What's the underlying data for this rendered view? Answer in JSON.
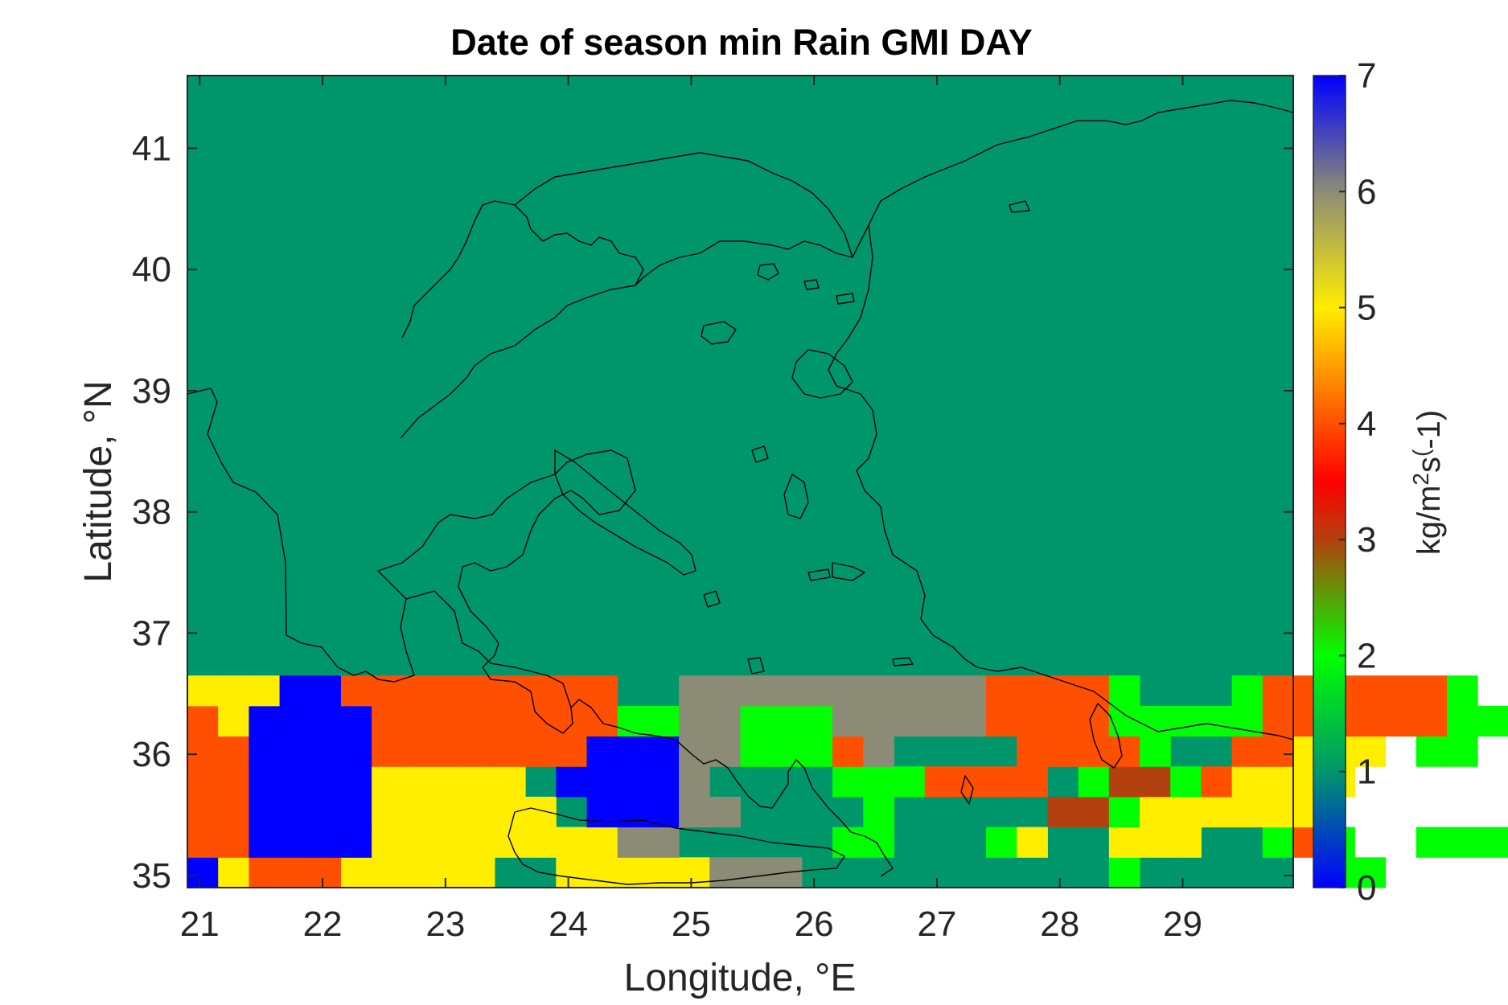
{
  "chart_data": {
    "type": "heatmap",
    "title": "Date of season min Rain GMI DAY",
    "xlabel": "Longitude, °E",
    "ylabel": "Latitude, °N",
    "xlim": [
      20.9,
      29.9
    ],
    "ylim": [
      34.9,
      41.6
    ],
    "xticks": [
      21,
      22,
      23,
      24,
      25,
      26,
      27,
      28,
      29
    ],
    "yticks": [
      35,
      36,
      37,
      38,
      39,
      40,
      41
    ],
    "grid": false,
    "colorbar": {
      "label": "kg/m2s(-1)",
      "label_parts": [
        "kg/m",
        "2",
        "s",
        "(",
        "-1)"
      ],
      "range": [
        0,
        7
      ],
      "ticks": [
        0,
        1,
        2,
        3,
        4,
        5,
        6,
        7
      ],
      "stops": [
        {
          "v": 0,
          "c": "#0000ff"
        },
        {
          "v": 1,
          "c": "#00966b"
        },
        {
          "v": 2,
          "c": "#00ff00"
        },
        {
          "v": 3,
          "c": "#b3400f"
        },
        {
          "v": 3.5,
          "c": "#ff0000"
        },
        {
          "v": 5,
          "c": "#ffee00"
        },
        {
          "v": 6,
          "c": "#8c8c76"
        },
        {
          "v": 7,
          "c": "#0000ff"
        }
      ]
    },
    "grid_cells": {
      "lon0": 20.9,
      "lat0": 34.9,
      "dlon": 0.25,
      "dlat": 0.25,
      "default_value": 1,
      "value_codes": {
        ".": 1,
        "B": 0,
        "G": 2,
        "R": 4,
        "Y": 5,
        "A": 6,
        "D": 3
      },
      "rows_from_bottom": [
        "BYRRRYYYYY..YYYYYAAA..........G......GG..............B",
        "RRBBBBYYYYYYYYAA.....GG...GY..YYY..GRG..GGGGGGGG.....G",
        "RRBBBBYYYYYY.BBBAA....G.....DDGYYYYYY......GGGGGGGGGGG",
        "RRBBBBYYYYY.BBBBA....GGGRRRR.GDDGRYYYY.....GGGGGGGGYYG",
        "RRBBBBRRRRRRRBBBAAGGGRA....RRRRG..RRYYY.GG....GYGAAYYY",
        "RYBBBBRRRRRRRRGGAAGGGAAAAARRRRGGGGGRRRRRRGG...GAAAYYY.",
        "YYYBBRRRRRRRRR..AAAAAAAAAARRRRG...GRRRRRRG....GAAA...."
      ]
    }
  }
}
